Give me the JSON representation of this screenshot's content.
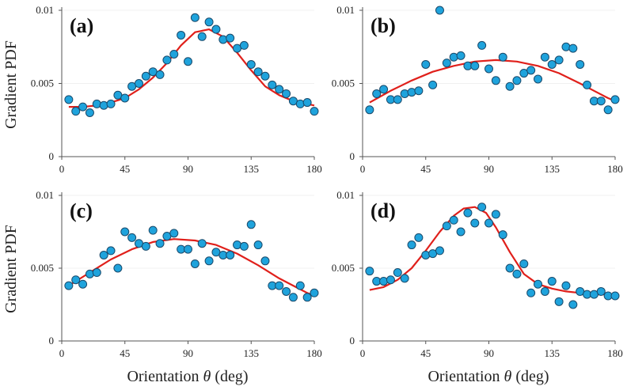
{
  "figure": {
    "ylabel": "Gradient PDF",
    "xlabel_prefix": "Orientation ",
    "xlabel_var": "θ",
    "xlabel_suffix": " (deg)",
    "colors": {
      "point_fill": "#1fa3dc",
      "point_stroke": "#1a4a6b",
      "fit": "#e0201b"
    }
  },
  "chart_data": [
    {
      "type": "scatter",
      "panel_label": "(a)",
      "xlim": [
        0,
        180
      ],
      "ylim": [
        0,
        0.01
      ],
      "xticks": [
        0,
        45,
        90,
        135,
        180
      ],
      "xtick_labels": [
        "0",
        "45",
        "90",
        "135",
        "180"
      ],
      "yticks": [
        0,
        0.005,
        0.01
      ],
      "ytick_labels": [
        "0",
        "0.005",
        "0.01"
      ],
      "ylabel": "Gradient PDF",
      "xlabel": "",
      "points": {
        "x": [
          5,
          10,
          15,
          20,
          25,
          30,
          35,
          40,
          45,
          50,
          55,
          60,
          65,
          70,
          75,
          80,
          85,
          90,
          95,
          100,
          105,
          110,
          115,
          120,
          125,
          130,
          135,
          140,
          145,
          150,
          155,
          160,
          165,
          170,
          175,
          180
        ],
        "y": [
          0.0039,
          0.0031,
          0.0034,
          0.003,
          0.0036,
          0.0035,
          0.0036,
          0.0042,
          0.004,
          0.0048,
          0.005,
          0.0055,
          0.0058,
          0.0056,
          0.0066,
          0.007,
          0.0083,
          0.0065,
          0.0095,
          0.0082,
          0.0092,
          0.0087,
          0.008,
          0.0081,
          0.0074,
          0.0076,
          0.0063,
          0.0058,
          0.0055,
          0.0049,
          0.0046,
          0.0043,
          0.0038,
          0.0036,
          0.0037,
          0.0031
        ]
      },
      "fit": {
        "x": [
          5,
          15,
          25,
          35,
          45,
          55,
          65,
          75,
          85,
          95,
          105,
          115,
          125,
          135,
          145,
          155,
          165,
          175,
          180
        ],
        "y": [
          0.0034,
          0.0034,
          0.0035,
          0.0037,
          0.004,
          0.0046,
          0.0054,
          0.0064,
          0.0076,
          0.0085,
          0.0087,
          0.0082,
          0.0071,
          0.0059,
          0.0048,
          0.0042,
          0.0038,
          0.0036,
          0.0035
        ]
      }
    },
    {
      "type": "scatter",
      "panel_label": "(b)",
      "xlim": [
        0,
        180
      ],
      "ylim": [
        0,
        0.01
      ],
      "xticks": [
        0,
        45,
        90,
        135,
        180
      ],
      "xtick_labels": [
        "0",
        "45",
        "90",
        "135",
        "180"
      ],
      "yticks": [
        0,
        0.005,
        0.01
      ],
      "ytick_labels": [
        "0",
        "0.005",
        "0.01"
      ],
      "ylabel": "",
      "xlabel": "",
      "points": {
        "x": [
          5,
          10,
          15,
          20,
          25,
          30,
          35,
          40,
          45,
          50,
          55,
          60,
          65,
          70,
          75,
          80,
          85,
          90,
          95,
          100,
          105,
          110,
          115,
          120,
          125,
          130,
          135,
          140,
          145,
          150,
          155,
          160,
          165,
          170,
          175,
          180
        ],
        "y": [
          0.0032,
          0.0043,
          0.0046,
          0.0039,
          0.0039,
          0.0043,
          0.0044,
          0.0045,
          0.0063,
          0.0049,
          0.01,
          0.0064,
          0.0068,
          0.0069,
          0.0062,
          0.0062,
          0.0076,
          0.006,
          0.0052,
          0.0068,
          0.0048,
          0.0052,
          0.0057,
          0.0059,
          0.0053,
          0.0068,
          0.0063,
          0.0066,
          0.0075,
          0.0074,
          0.0063,
          0.0049,
          0.0038,
          0.0038,
          0.0032,
          0.0039
        ]
      },
      "fit": {
        "x": [
          5,
          20,
          35,
          50,
          65,
          80,
          95,
          110,
          125,
          140,
          155,
          165,
          175,
          180
        ],
        "y": [
          0.0037,
          0.0045,
          0.0052,
          0.0058,
          0.0062,
          0.0065,
          0.0066,
          0.0065,
          0.0062,
          0.0057,
          0.005,
          0.0045,
          0.004,
          0.0038
        ]
      }
    },
    {
      "type": "scatter",
      "panel_label": "(c)",
      "xlim": [
        0,
        180
      ],
      "ylim": [
        0,
        0.01
      ],
      "xticks": [
        0,
        45,
        90,
        135,
        180
      ],
      "xtick_labels": [
        "0",
        "45",
        "90",
        "135",
        "180"
      ],
      "yticks": [
        0,
        0.005,
        0.01
      ],
      "ytick_labels": [
        "0",
        "0.005",
        "0.01"
      ],
      "ylabel": "Gradient PDF",
      "xlabel": "Orientation θ (deg)",
      "points": {
        "x": [
          5,
          10,
          15,
          20,
          25,
          30,
          35,
          40,
          45,
          50,
          55,
          60,
          65,
          70,
          75,
          80,
          85,
          90,
          95,
          100,
          105,
          110,
          115,
          120,
          125,
          130,
          135,
          140,
          145,
          150,
          155,
          160,
          165,
          170,
          175,
          180
        ],
        "y": [
          0.0038,
          0.0042,
          0.0039,
          0.0046,
          0.0047,
          0.0059,
          0.0062,
          0.005,
          0.0075,
          0.0071,
          0.0067,
          0.0065,
          0.0076,
          0.0067,
          0.0072,
          0.0074,
          0.0063,
          0.0063,
          0.0053,
          0.0067,
          0.0055,
          0.0061,
          0.0059,
          0.0059,
          0.0066,
          0.0065,
          0.008,
          0.0066,
          0.0055,
          0.0038,
          0.0038,
          0.0034,
          0.003,
          0.0038,
          0.003,
          0.0033
        ]
      },
      "fit": {
        "x": [
          5,
          20,
          35,
          50,
          65,
          80,
          95,
          110,
          125,
          140,
          155,
          165,
          175,
          180
        ],
        "y": [
          0.0038,
          0.0047,
          0.0056,
          0.0063,
          0.0068,
          0.007,
          0.0069,
          0.0066,
          0.006,
          0.0052,
          0.0043,
          0.0038,
          0.0033,
          0.0031
        ]
      }
    },
    {
      "type": "scatter",
      "panel_label": "(d)",
      "xlim": [
        0,
        180
      ],
      "ylim": [
        0,
        0.01
      ],
      "xticks": [
        0,
        45,
        90,
        135,
        180
      ],
      "xtick_labels": [
        "0",
        "45",
        "90",
        "135",
        "180"
      ],
      "yticks": [
        0,
        0.005,
        0.01
      ],
      "ytick_labels": [
        "0",
        "0.005",
        "0.01"
      ],
      "ylabel": "",
      "xlabel": "Orientation θ (deg)",
      "points": {
        "x": [
          5,
          10,
          15,
          20,
          25,
          30,
          35,
          40,
          45,
          50,
          55,
          60,
          65,
          70,
          75,
          80,
          85,
          90,
          95,
          100,
          105,
          110,
          115,
          120,
          125,
          130,
          135,
          140,
          145,
          150,
          155,
          160,
          165,
          170,
          175,
          180
        ],
        "y": [
          0.0048,
          0.0041,
          0.0041,
          0.0042,
          0.0047,
          0.0043,
          0.0066,
          0.0071,
          0.0059,
          0.006,
          0.0062,
          0.0079,
          0.0083,
          0.0075,
          0.0088,
          0.0081,
          0.0092,
          0.0081,
          0.0087,
          0.0073,
          0.005,
          0.0046,
          0.0053,
          0.0033,
          0.0039,
          0.0034,
          0.0041,
          0.0027,
          0.0038,
          0.0025,
          0.0034,
          0.0032,
          0.0032,
          0.0034,
          0.0031,
          0.0031
        ]
      },
      "fit": {
        "x": [
          5,
          15,
          25,
          35,
          45,
          55,
          65,
          72,
          80,
          88,
          95,
          105,
          115,
          125,
          135,
          145,
          155,
          165,
          175,
          180
        ],
        "y": [
          0.0035,
          0.0037,
          0.0042,
          0.005,
          0.0062,
          0.0075,
          0.0086,
          0.0091,
          0.0092,
          0.0088,
          0.0078,
          0.0061,
          0.0046,
          0.0039,
          0.0036,
          0.0034,
          0.0033,
          0.0032,
          0.0032,
          0.0032
        ]
      }
    }
  ]
}
